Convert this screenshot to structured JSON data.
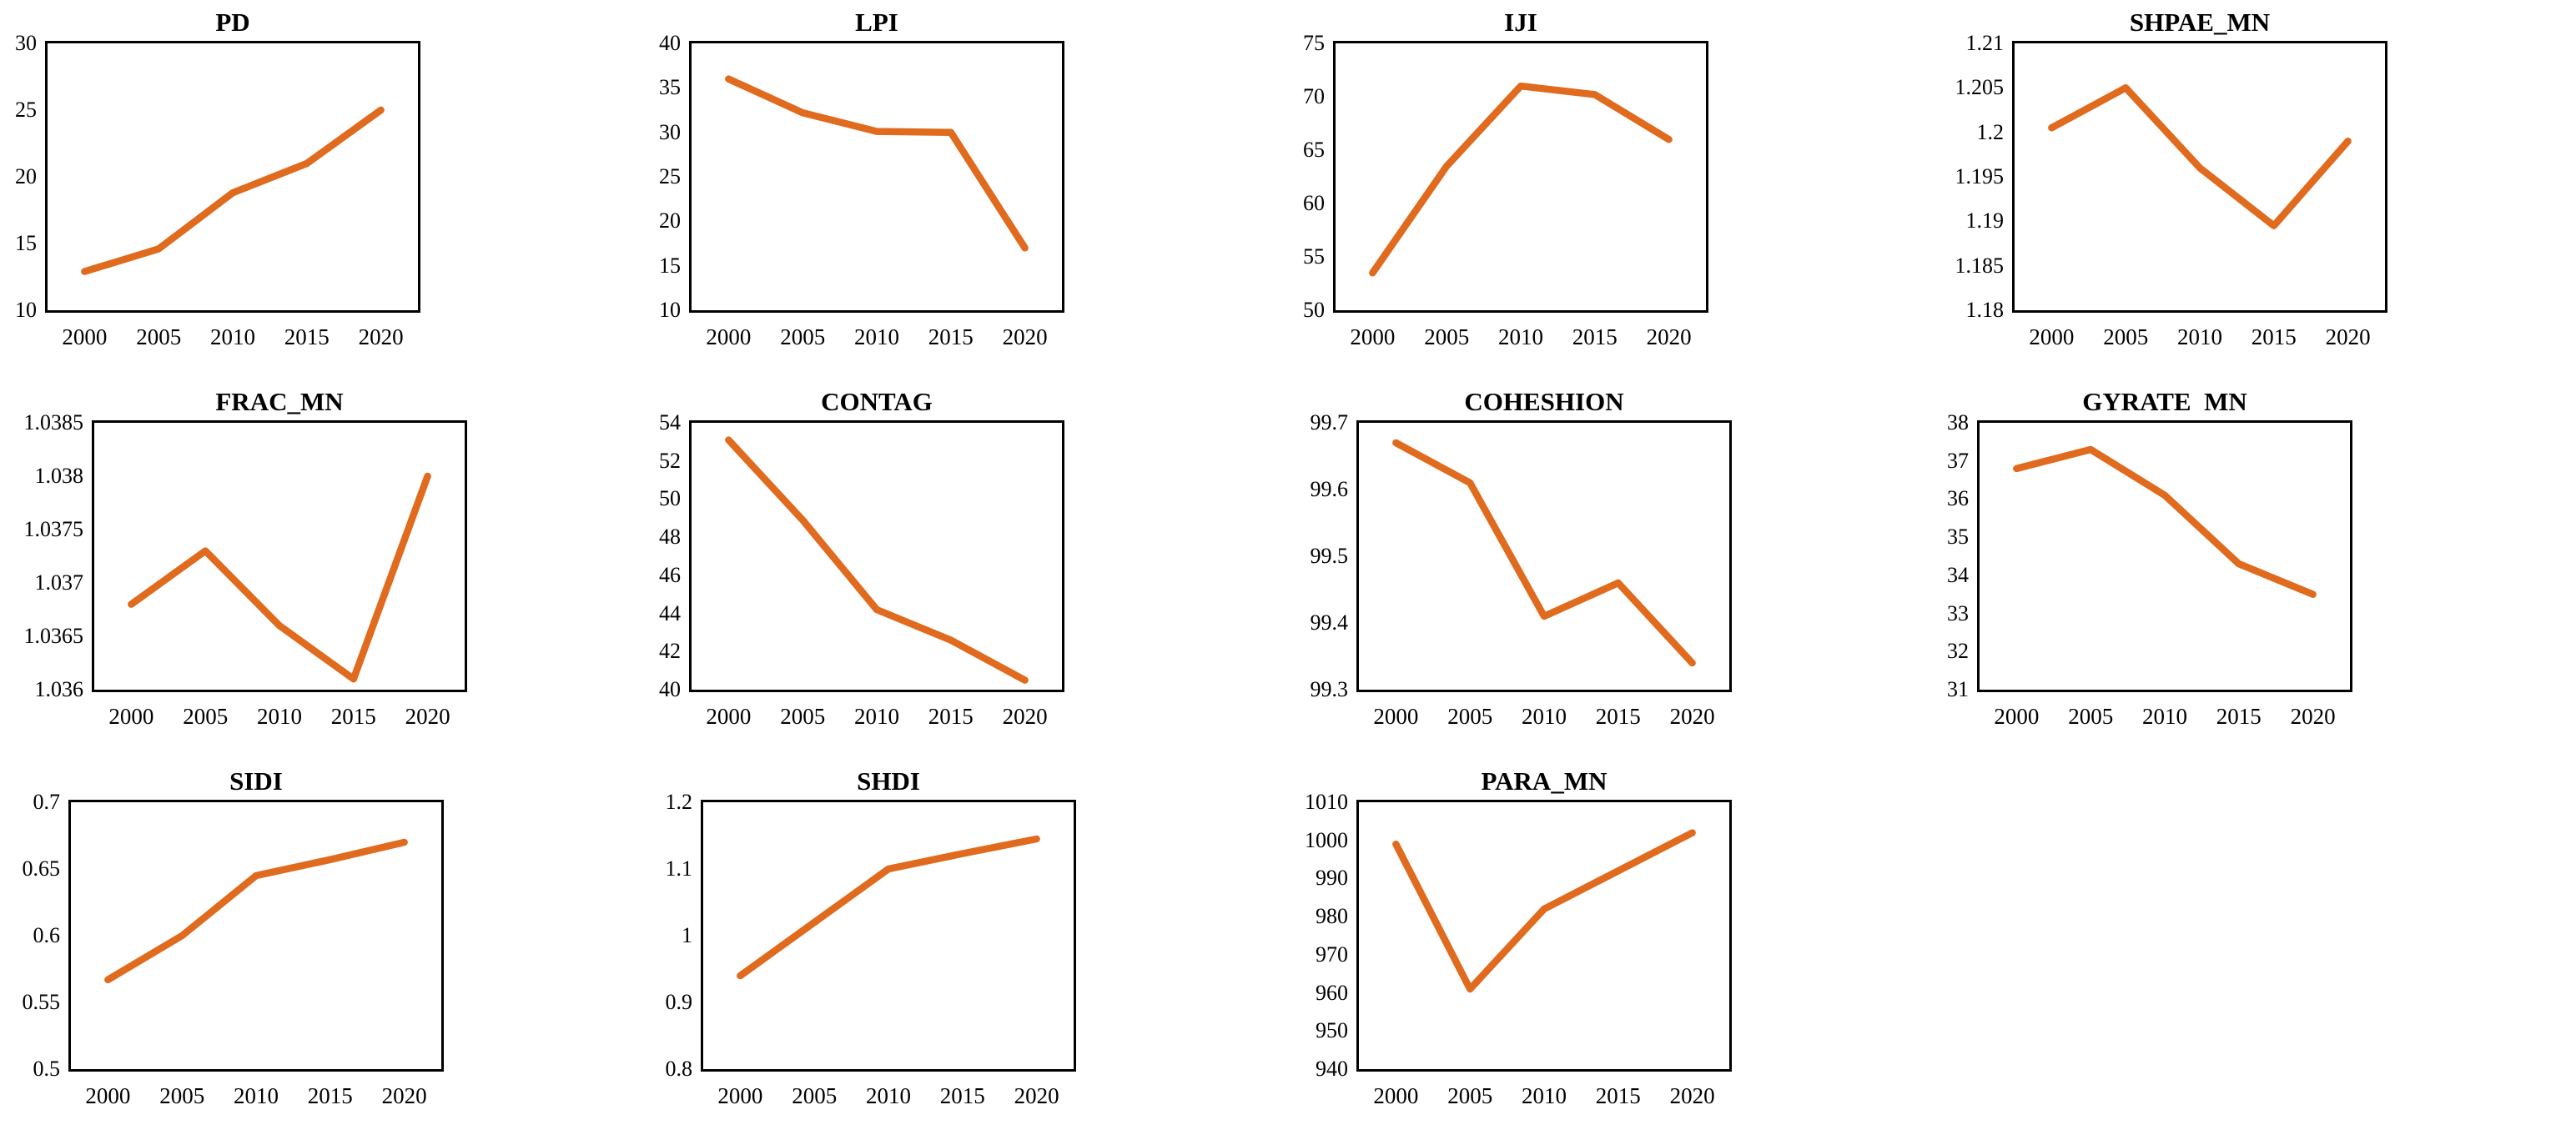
{
  "layout": {
    "columns": 4,
    "rows": 3
  },
  "style": {
    "line_color": "#E06A1D",
    "axis_color": "#000000",
    "text_color": "#000000",
    "background": "#ffffff"
  },
  "chart_data": [
    {
      "type": "line",
      "title": "PD",
      "categories": [
        "2000",
        "2005",
        "2010",
        "2015",
        "2020"
      ],
      "values": [
        12.9,
        14.6,
        18.8,
        21.0,
        25.0
      ],
      "ylim": [
        10,
        30
      ],
      "yticks": [
        10,
        15,
        20,
        25,
        30
      ],
      "ytick_labels": [
        "10",
        "15",
        "20",
        "25",
        "30"
      ],
      "xlabel": "",
      "ylabel": "",
      "grid": false,
      "legend": "none"
    },
    {
      "type": "line",
      "title": "LPI",
      "categories": [
        "2000",
        "2005",
        "2010",
        "2015",
        "2020"
      ],
      "values": [
        36.0,
        32.2,
        30.1,
        30.0,
        17.0
      ],
      "ylim": [
        10,
        40
      ],
      "yticks": [
        10,
        15,
        20,
        25,
        30,
        35,
        40
      ],
      "ytick_labels": [
        "10",
        "15",
        "20",
        "25",
        "30",
        "35",
        "40"
      ],
      "xlabel": "",
      "ylabel": "",
      "grid": false,
      "legend": "none"
    },
    {
      "type": "line",
      "title": "IJI",
      "categories": [
        "2000",
        "2005",
        "2010",
        "2015",
        "2020"
      ],
      "values": [
        53.5,
        63.5,
        71.0,
        70.2,
        66.0
      ],
      "ylim": [
        50,
        75
      ],
      "yticks": [
        50,
        55,
        60,
        65,
        70,
        75
      ],
      "ytick_labels": [
        "50",
        "55",
        "60",
        "65",
        "70",
        "75"
      ],
      "xlabel": "",
      "ylabel": "",
      "grid": false,
      "legend": "none"
    },
    {
      "type": "line",
      "title": "SHPAE_MN",
      "categories": [
        "2000",
        "2005",
        "2010",
        "2015",
        "2020"
      ],
      "values": [
        1.2005,
        1.205,
        1.196,
        1.1895,
        1.199
      ],
      "ylim": [
        1.18,
        1.21
      ],
      "yticks": [
        1.18,
        1.185,
        1.19,
        1.195,
        1.2,
        1.205,
        1.21
      ],
      "ytick_labels": [
        "1.18",
        "1.185",
        "1.19",
        "1.195",
        "1.2",
        "1.205",
        "1.21"
      ],
      "xlabel": "",
      "ylabel": "",
      "grid": false,
      "legend": "none"
    },
    {
      "type": "line",
      "title": "FRAC_MN",
      "categories": [
        "2000",
        "2005",
        "2010",
        "2015",
        "2020"
      ],
      "values": [
        1.0368,
        1.0373,
        1.0366,
        1.0361,
        1.038
      ],
      "ylim": [
        1.036,
        1.0385
      ],
      "yticks": [
        1.036,
        1.0365,
        1.037,
        1.0375,
        1.038,
        1.0385
      ],
      "ytick_labels": [
        "1.036",
        "1.0365",
        "1.037",
        "1.0375",
        "1.038",
        "1.0385"
      ],
      "xlabel": "",
      "ylabel": "",
      "grid": false,
      "legend": "none"
    },
    {
      "type": "line",
      "title": "CONTAG",
      "categories": [
        "2000",
        "2005",
        "2010",
        "2015",
        "2020"
      ],
      "values": [
        53.1,
        48.9,
        44.2,
        42.6,
        40.5
      ],
      "ylim": [
        40,
        54
      ],
      "yticks": [
        40,
        42,
        44,
        46,
        48,
        50,
        52,
        54
      ],
      "ytick_labels": [
        "40",
        "42",
        "44",
        "46",
        "48",
        "50",
        "52",
        "54"
      ],
      "xlabel": "",
      "ylabel": "",
      "grid": false,
      "legend": "none"
    },
    {
      "type": "line",
      "title": "COHESHION",
      "categories": [
        "2000",
        "2005",
        "2010",
        "2015",
        "2020"
      ],
      "values": [
        99.67,
        99.61,
        99.41,
        99.46,
        99.34
      ],
      "ylim": [
        99.3,
        99.7
      ],
      "yticks": [
        99.3,
        99.4,
        99.5,
        99.6,
        99.7
      ],
      "ytick_labels": [
        "99.3",
        "99.4",
        "99.5",
        "99.6",
        "99.7"
      ],
      "xlabel": "",
      "ylabel": "",
      "grid": false,
      "legend": "none"
    },
    {
      "type": "line",
      "title": "GYRATE  MN",
      "categories": [
        "2000",
        "2005",
        "2010",
        "2015",
        "2020"
      ],
      "values": [
        36.8,
        37.3,
        36.1,
        34.3,
        33.5
      ],
      "ylim": [
        31,
        38
      ],
      "yticks": [
        31,
        32,
        33,
        34,
        35,
        36,
        37,
        38
      ],
      "ytick_labels": [
        "31",
        "32",
        "33",
        "34",
        "35",
        "36",
        "37",
        "38"
      ],
      "xlabel": "",
      "ylabel": "",
      "grid": false,
      "legend": "none"
    },
    {
      "type": "line",
      "title": "SIDI",
      "categories": [
        "2000",
        "2005",
        "2010",
        "2015",
        "2020"
      ],
      "values": [
        0.567,
        0.6,
        0.645,
        0.657,
        0.67
      ],
      "ylim": [
        0.5,
        0.7
      ],
      "yticks": [
        0.5,
        0.55,
        0.6,
        0.65,
        0.7
      ],
      "ytick_labels": [
        "0.5",
        "0.55",
        "0.6",
        "0.65",
        "0.7"
      ],
      "xlabel": "",
      "ylabel": "",
      "grid": false,
      "legend": "none"
    },
    {
      "type": "line",
      "title": "SHDI",
      "categories": [
        "2000",
        "2005",
        "2010",
        "2015",
        "2020"
      ],
      "values": [
        0.94,
        1.02,
        1.1,
        1.123,
        1.145
      ],
      "ylim": [
        0.8,
        1.2
      ],
      "yticks": [
        0.8,
        0.9,
        1,
        1.1,
        1.2
      ],
      "ytick_labels": [
        "0.8",
        "0.9",
        "1",
        "1.1",
        "1.2"
      ],
      "xlabel": "",
      "ylabel": "",
      "grid": false,
      "legend": "none"
    },
    {
      "type": "line",
      "title": "PARA_MN",
      "categories": [
        "2000",
        "2005",
        "2010",
        "2015",
        "2020"
      ],
      "values": [
        999,
        961,
        982,
        992,
        1002
      ],
      "ylim": [
        940,
        1010
      ],
      "yticks": [
        940,
        950,
        960,
        970,
        980,
        990,
        1000,
        1010
      ],
      "ytick_labels": [
        "940",
        "950",
        "960",
        "970",
        "980",
        "990",
        "1000",
        "1010"
      ],
      "xlabel": "",
      "ylabel": "",
      "grid": false,
      "legend": "none"
    }
  ]
}
